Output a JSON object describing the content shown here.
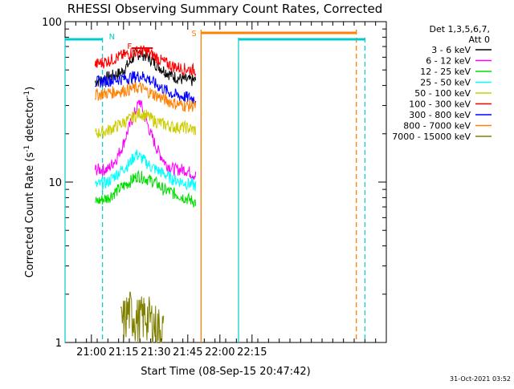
{
  "chart_data": {
    "type": "line",
    "title": "RHESSI Observing Summary Count Rates, Corrected",
    "xlabel": "Start Time (08-Sep-15 20:47:42)",
    "ylabel_main": "Corrected Count Rate (s",
    "ylabel_sup1": "-1",
    "ylabel_mid": " detector",
    "ylabel_sup2": "-1",
    "ylabel_end": ")",
    "y_scale": "log",
    "ylim": [
      1,
      100
    ],
    "xlim_min": [
      0,
      150
    ],
    "y_ticks": [
      {
        "value": 1,
        "label": "1"
      },
      {
        "value": 10,
        "label": "10"
      },
      {
        "value": 100,
        "label": "100"
      }
    ],
    "x_ticks": [
      {
        "value": 12.3,
        "label": "21:00"
      },
      {
        "value": 27.3,
        "label": "21:15"
      },
      {
        "value": 42.3,
        "label": "21:30"
      },
      {
        "value": 57.3,
        "label": "21:45"
      },
      {
        "value": 72.3,
        "label": "22:00"
      },
      {
        "value": 87.3,
        "label": "22:15"
      }
    ],
    "legend": {
      "header1": "Det 1,3,5,6,7,",
      "header2": "Att 0",
      "placement": "right"
    },
    "series": [
      {
        "name": "3 - 6 keV",
        "color": "#000000",
        "points": [
          [
            14,
            42
          ],
          [
            20,
            45
          ],
          [
            26,
            48
          ],
          [
            30,
            55
          ],
          [
            33,
            63
          ],
          [
            36,
            63
          ],
          [
            39,
            60
          ],
          [
            42,
            55
          ],
          [
            46,
            50
          ],
          [
            50,
            46
          ],
          [
            54,
            44
          ],
          [
            58,
            43
          ],
          [
            61,
            43
          ]
        ]
      },
      {
        "name": "6 - 12 keV",
        "color": "#ff00ff",
        "points": [
          [
            14,
            12
          ],
          [
            20,
            12
          ],
          [
            24,
            14
          ],
          [
            27,
            17
          ],
          [
            30,
            22
          ],
          [
            33,
            28
          ],
          [
            35,
            32
          ],
          [
            37,
            26
          ],
          [
            40,
            20
          ],
          [
            43,
            16
          ],
          [
            47,
            13
          ],
          [
            51,
            12
          ],
          [
            56,
            12
          ],
          [
            61,
            11
          ]
        ]
      },
      {
        "name": "12 - 25 keV",
        "color": "#00dd00",
        "points": [
          [
            14,
            7.5
          ],
          [
            20,
            8
          ],
          [
            25,
            9
          ],
          [
            30,
            10
          ],
          [
            34,
            11
          ],
          [
            38,
            10.5
          ],
          [
            42,
            10
          ],
          [
            46,
            9
          ],
          [
            51,
            8.5
          ],
          [
            56,
            8
          ],
          [
            61,
            7.5
          ]
        ]
      },
      {
        "name": "25 - 50 keV",
        "color": "#00ffff",
        "points": [
          [
            14,
            9.5
          ],
          [
            20,
            10
          ],
          [
            25,
            11.5
          ],
          [
            30,
            13
          ],
          [
            33,
            15
          ],
          [
            36,
            14
          ],
          [
            40,
            12.5
          ],
          [
            45,
            11.5
          ],
          [
            50,
            10.5
          ],
          [
            55,
            10
          ],
          [
            61,
            9.5
          ]
        ]
      },
      {
        "name": "50 - 100 keV",
        "color": "#cccc00",
        "points": [
          [
            14,
            20
          ],
          [
            20,
            21
          ],
          [
            26,
            23
          ],
          [
            31,
            25
          ],
          [
            35,
            27
          ],
          [
            38,
            26
          ],
          [
            42,
            24
          ],
          [
            46,
            23
          ],
          [
            51,
            22
          ],
          [
            56,
            22
          ],
          [
            61,
            21
          ]
        ]
      },
      {
        "name": "100 - 300 keV",
        "color": "#ff0000",
        "points": [
          [
            14,
            54
          ],
          [
            20,
            57
          ],
          [
            26,
            61
          ],
          [
            31,
            64
          ],
          [
            35,
            66
          ],
          [
            38,
            65
          ],
          [
            41,
            62
          ],
          [
            45,
            57
          ],
          [
            50,
            53
          ],
          [
            55,
            51
          ],
          [
            61,
            50
          ]
        ]
      },
      {
        "name": "300 - 800 keV",
        "color": "#0000ff",
        "points": [
          [
            14,
            42
          ],
          [
            20,
            43
          ],
          [
            26,
            44
          ],
          [
            31,
            45
          ],
          [
            35,
            46
          ],
          [
            38,
            45
          ],
          [
            42,
            41
          ],
          [
            46,
            38
          ],
          [
            51,
            35
          ],
          [
            56,
            34
          ],
          [
            61,
            33
          ]
        ]
      },
      {
        "name": "800 - 7000 keV",
        "color": "#ff8000",
        "points": [
          [
            14,
            35
          ],
          [
            20,
            36
          ],
          [
            26,
            37
          ],
          [
            31,
            38
          ],
          [
            35,
            39
          ],
          [
            38,
            37
          ],
          [
            42,
            35
          ],
          [
            46,
            33
          ],
          [
            51,
            31
          ],
          [
            56,
            30
          ],
          [
            61,
            30
          ]
        ]
      },
      {
        "name": "7000 - 15000 keV",
        "color": "#808000",
        "points": [
          [
            26,
            1.3
          ],
          [
            30,
            1.6
          ],
          [
            34,
            1.4
          ],
          [
            38,
            1.5
          ],
          [
            42,
            1.3
          ],
          [
            46,
            1.2
          ]
        ]
      }
    ],
    "orbit_lines": [
      {
        "label": "N",
        "x": 17.5,
        "style": "dashed",
        "color": "#00cccc"
      },
      {
        "label": "",
        "x": 0,
        "style": "solid",
        "color": "#00cccc"
      },
      {
        "label": "",
        "x": 81,
        "style": "solid",
        "color": "#00cccc"
      },
      {
        "label": "",
        "x": 140,
        "style": "dashed",
        "color": "#00cccc"
      }
    ],
    "saa_lines": [
      {
        "label": "S",
        "x": 63.5,
        "style": "solid",
        "color": "#ff8000"
      },
      {
        "label": "",
        "x": 136,
        "style": "dashed",
        "color": "#ff8000"
      }
    ],
    "flare_label": "F",
    "timestamp": "31-Oct-2021 03:52"
  }
}
